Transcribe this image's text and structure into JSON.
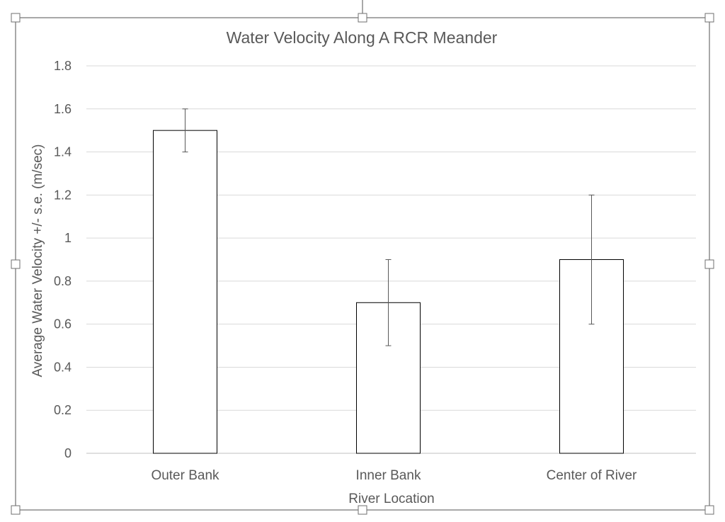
{
  "chart_data": {
    "type": "bar",
    "title": "Water Velocity Along A RCR Meander",
    "xlabel": "River Location",
    "ylabel": "Average Water Velocity +/- s.e. (m/sec)",
    "categories": [
      "Outer Bank",
      "Inner Bank",
      "Center of River"
    ],
    "values": [
      1.5,
      0.7,
      0.9
    ],
    "error": [
      0.1,
      0.2,
      0.3
    ],
    "ylim": [
      0,
      1.8
    ],
    "yticks": [
      "0",
      "0.2",
      "0.4",
      "0.6",
      "0.8",
      "1",
      "1.2",
      "1.4",
      "1.6",
      "1.8"
    ],
    "grid": true,
    "legend": "none",
    "colors": {
      "bar_fill": "#ffffff",
      "bar_stroke": "#000000",
      "grid": "#d9d9d9",
      "text": "#595959",
      "frame": "#8c8c8c"
    }
  }
}
